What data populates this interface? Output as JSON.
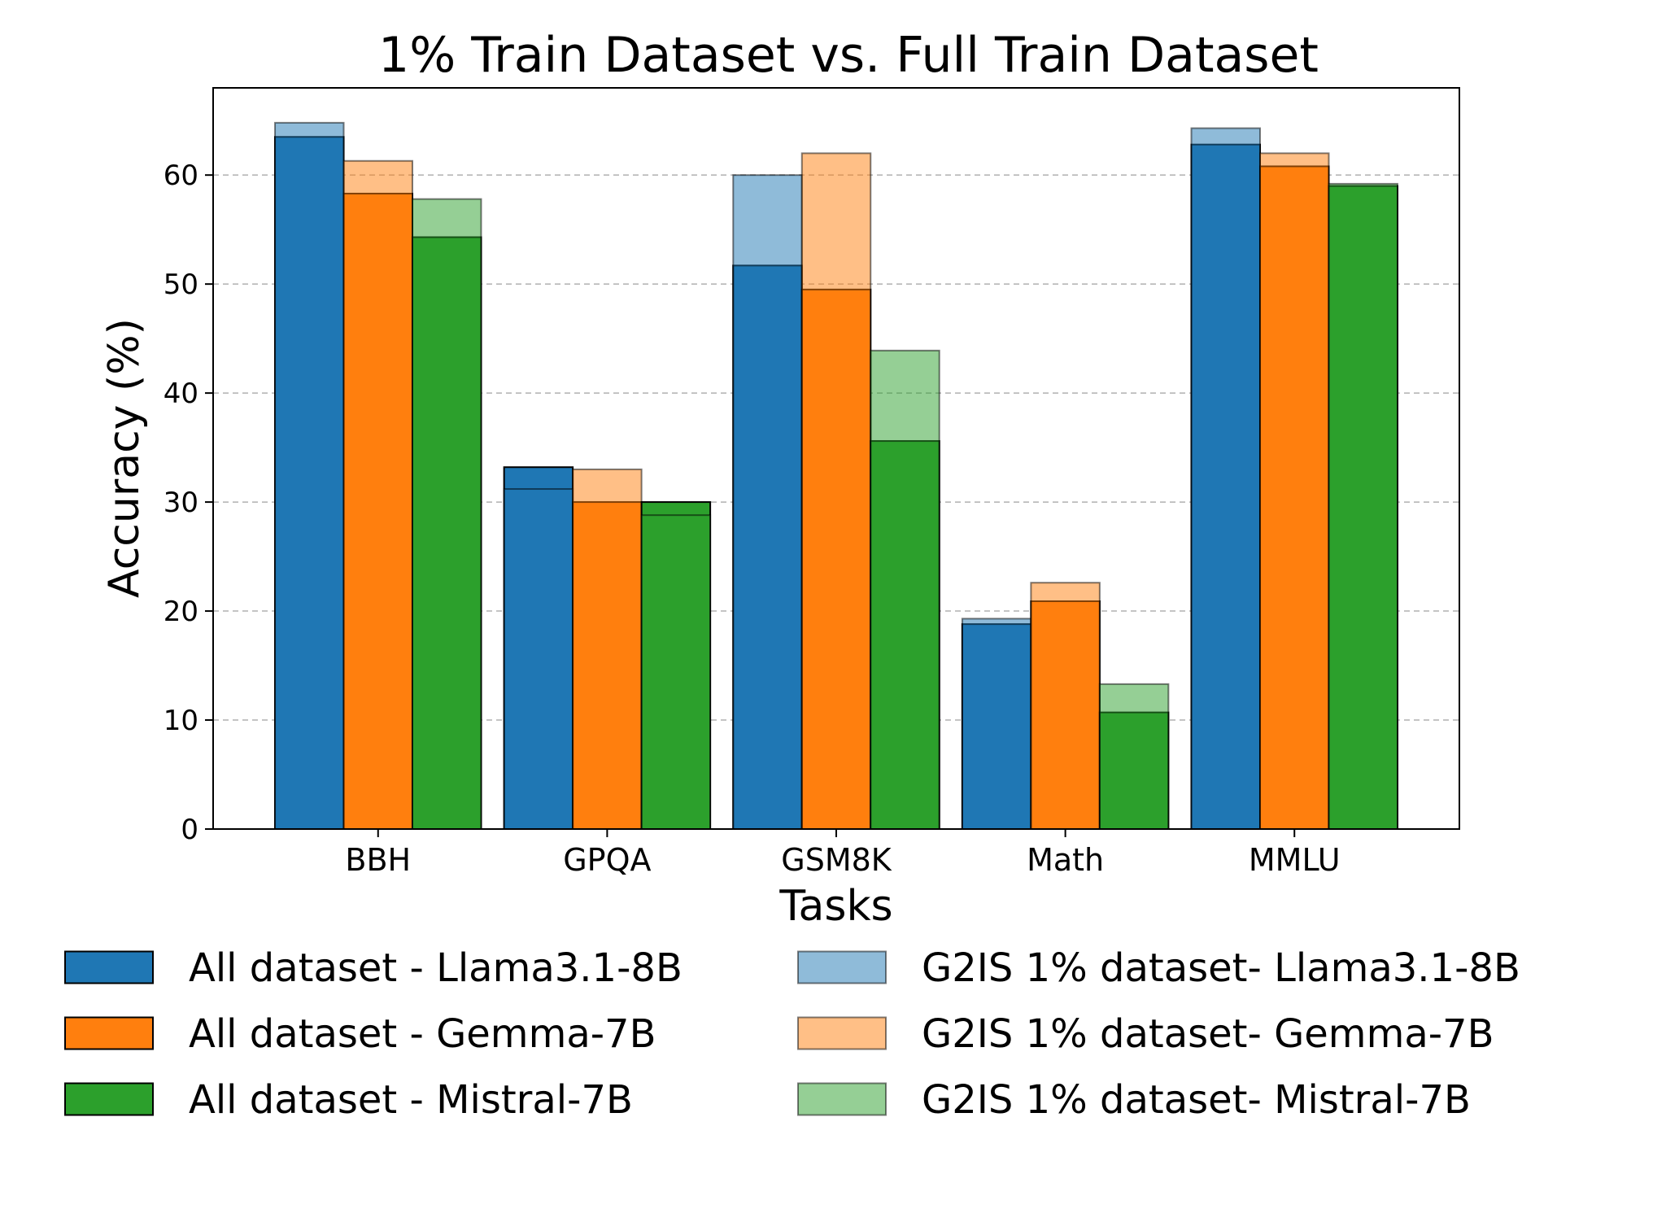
{
  "chart_data": {
    "type": "bar",
    "title": "1% Train Dataset vs. Full Train Dataset",
    "xlabel": "Tasks",
    "ylabel": "Accuracy (%)",
    "ylim": [
      0,
      68
    ],
    "yticks": [
      0,
      10,
      20,
      30,
      40,
      50,
      60
    ],
    "grid": "y dashed",
    "legend_position": "below",
    "categories": [
      "BBH",
      "GPQA",
      "GSM8K",
      "Math",
      "MMLU"
    ],
    "models": [
      {
        "full": {
          "name": "All dataset - Llama3.1-8B",
          "color": "#1f77b4",
          "values": [
            63.5,
            33.2,
            51.7,
            18.8,
            62.8
          ]
        },
        "g2is": {
          "name": "G2IS 1% dataset- Llama3.1-8B",
          "color": "#8fb9d9",
          "values": [
            64.8,
            31.2,
            60.0,
            19.3,
            64.3
          ]
        }
      },
      {
        "full": {
          "name": "All dataset - Gemma-7B",
          "color": "#ff7f0e",
          "values": [
            58.3,
            30.0,
            49.5,
            20.9,
            60.8
          ]
        },
        "g2is": {
          "name": "G2IS 1% dataset- Gemma-7B",
          "color": "#ffbe86",
          "values": [
            61.3,
            33.0,
            62.0,
            22.6,
            62.0
          ]
        }
      },
      {
        "full": {
          "name": "All dataset - Mistral-7B",
          "color": "#2ca02c",
          "values": [
            54.3,
            30.0,
            35.6,
            10.7,
            59.0
          ]
        },
        "g2is": {
          "name": "G2IS 1% dataset- Mistral-7B",
          "color": "#95cf95",
          "values": [
            57.8,
            28.8,
            43.9,
            13.3,
            59.2
          ]
        }
      }
    ]
  }
}
